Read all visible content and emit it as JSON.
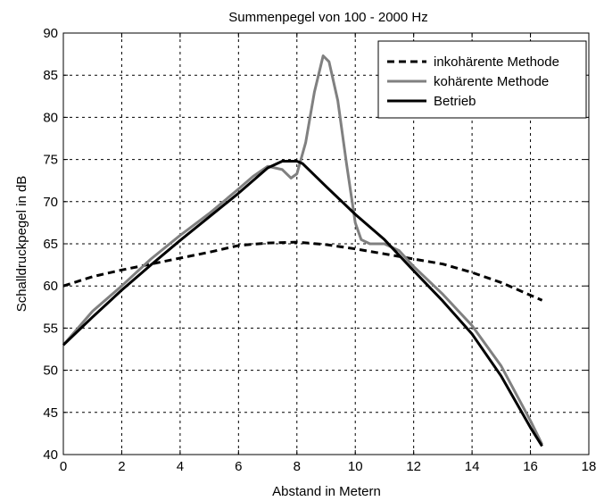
{
  "chart_data": {
    "type": "line",
    "title": "Summenpegel von 100 - 2000 Hz",
    "xlabel": "Abstand in Metern",
    "ylabel": "Schalldruckpegel in dB",
    "xlim": [
      0,
      18
    ],
    "ylim": [
      40,
      90
    ],
    "xticks": [
      0,
      2,
      4,
      6,
      8,
      10,
      12,
      14,
      16,
      18
    ],
    "yticks": [
      40,
      45,
      50,
      55,
      60,
      65,
      70,
      75,
      80,
      85,
      90
    ],
    "grid": true,
    "legend_position": "top-right",
    "series": [
      {
        "name": "inkohärente Methode",
        "style": "dashed",
        "color": "#000000",
        "x": [
          0,
          1,
          2,
          3,
          4,
          5,
          6,
          7,
          8,
          9,
          10,
          11,
          12,
          13,
          14,
          15,
          16,
          16.4
        ],
        "y": [
          60.0,
          61.1,
          61.9,
          62.6,
          63.3,
          64.0,
          64.8,
          65.1,
          65.2,
          64.9,
          64.4,
          63.8,
          63.2,
          62.6,
          61.6,
          60.4,
          58.9,
          58.3
        ]
      },
      {
        "name": "kohärente Methode",
        "style": "solid",
        "color": "#808080",
        "x": [
          0,
          0.5,
          1,
          2,
          3,
          4,
          5,
          6,
          6.5,
          7,
          7.5,
          7.8,
          8,
          8.3,
          8.6,
          8.9,
          9.1,
          9.4,
          9.7,
          10,
          10.2,
          10.5,
          11,
          11.5,
          12,
          13,
          14,
          15,
          16,
          16.4
        ],
        "y": [
          53.0,
          55.0,
          57.0,
          60.0,
          63.2,
          66.0,
          68.6,
          71.5,
          73.0,
          74.2,
          73.8,
          72.8,
          73.3,
          77.0,
          83.0,
          87.3,
          86.6,
          82.0,
          74.5,
          67.5,
          65.5,
          65.0,
          65.0,
          64.2,
          62.3,
          59.0,
          55.3,
          50.5,
          44.0,
          41.2
        ]
      },
      {
        "name": "Betrieb",
        "style": "solid",
        "color": "#000000",
        "x": [
          0,
          1,
          2,
          3,
          4,
          5,
          6,
          7,
          7.5,
          8,
          8.2,
          9,
          10,
          11,
          12,
          13,
          14,
          15,
          16,
          16.4
        ],
        "y": [
          53.0,
          56.3,
          59.5,
          62.5,
          65.4,
          68.2,
          71.0,
          74.0,
          74.8,
          74.8,
          74.5,
          71.8,
          68.5,
          65.5,
          61.8,
          58.2,
          54.3,
          49.3,
          43.2,
          41.0
        ]
      }
    ]
  }
}
